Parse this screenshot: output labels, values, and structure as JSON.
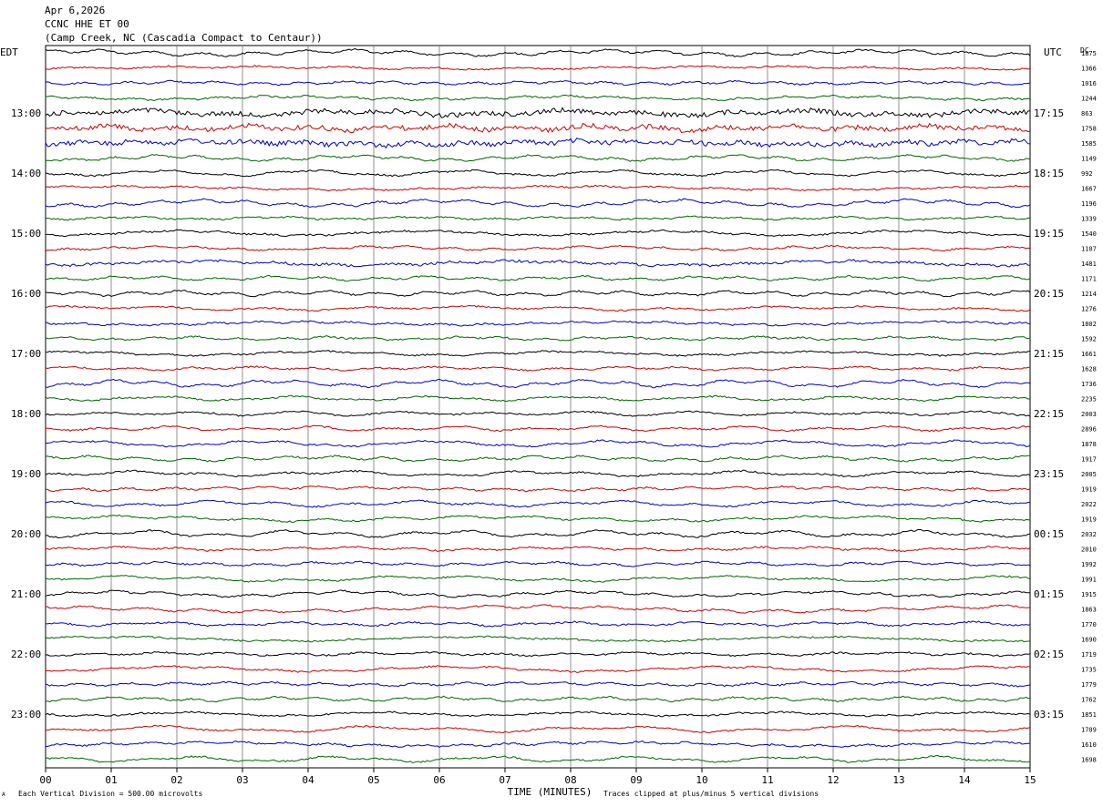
{
  "header": {
    "date": "Apr 6,2026",
    "station": "CCNC HHE ET 00",
    "location": "(Camp Creek, NC (Cascadia Compact to Centaur))"
  },
  "footer": {
    "corner_mark": "A",
    "scale_note": "Each Vertical Division = 500.00 microvolts",
    "clip_note": "Traces clipped at plus/minus 5 vertical divisions"
  },
  "chart_data": {
    "type": "line",
    "title": "",
    "xlabel": "TIME (MINUTES)",
    "ylabel_left": "EDT",
    "ylabel_right": "UTC",
    "dc_label": "DC",
    "xlim": [
      0,
      15
    ],
    "x_ticks": [
      "00",
      "01",
      "02",
      "03",
      "04",
      "05",
      "06",
      "07",
      "08",
      "09",
      "10",
      "11",
      "12",
      "13",
      "14",
      "15"
    ],
    "grid_vertical": true,
    "trace_minutes": 15,
    "trace_colors": [
      "#000000",
      "#cc0000",
      "#0000cc",
      "#006600"
    ],
    "edt_labels": [
      {
        "trace": 4,
        "text": "13:00"
      },
      {
        "trace": 8,
        "text": "14:00"
      },
      {
        "trace": 12,
        "text": "15:00"
      },
      {
        "trace": 16,
        "text": "16:00"
      },
      {
        "trace": 20,
        "text": "17:00"
      },
      {
        "trace": 24,
        "text": "18:00"
      },
      {
        "trace": 28,
        "text": "19:00"
      },
      {
        "trace": 32,
        "text": "20:00"
      },
      {
        "trace": 36,
        "text": "21:00"
      },
      {
        "trace": 40,
        "text": "22:00"
      },
      {
        "trace": 44,
        "text": "23:00"
      }
    ],
    "utc_labels": [
      {
        "trace": 4,
        "text": "17:15"
      },
      {
        "trace": 8,
        "text": "18:15"
      },
      {
        "trace": 12,
        "text": "19:15"
      },
      {
        "trace": 16,
        "text": "20:15"
      },
      {
        "trace": 20,
        "text": "21:15"
      },
      {
        "trace": 24,
        "text": "22:15"
      },
      {
        "trace": 28,
        "text": "23:15"
      },
      {
        "trace": 32,
        "text": "00:15"
      },
      {
        "trace": 36,
        "text": "01:15"
      },
      {
        "trace": 40,
        "text": "02:15"
      },
      {
        "trace": 44,
        "text": "03:15"
      }
    ],
    "dc_values": [
      "1875",
      "1366",
      "1016",
      "1244",
      "863",
      "1758",
      "1585",
      "1149",
      "992",
      "1667",
      "1196",
      "1339",
      "1540",
      "1107",
      "1481",
      "1171",
      "1214",
      "1276",
      "1802",
      "1592",
      "1661",
      "1628",
      "1736",
      "2235",
      "2003",
      "2896",
      "1878",
      "1917",
      "2005",
      "1919",
      "2022",
      "1919",
      "2032",
      "2010",
      "1992",
      "1991",
      "1915",
      "1863",
      "1770",
      "1690",
      "1719",
      "1735",
      "1779",
      "1762",
      "1851",
      "1709",
      "1610",
      "1698"
    ],
    "traces": 48
  }
}
